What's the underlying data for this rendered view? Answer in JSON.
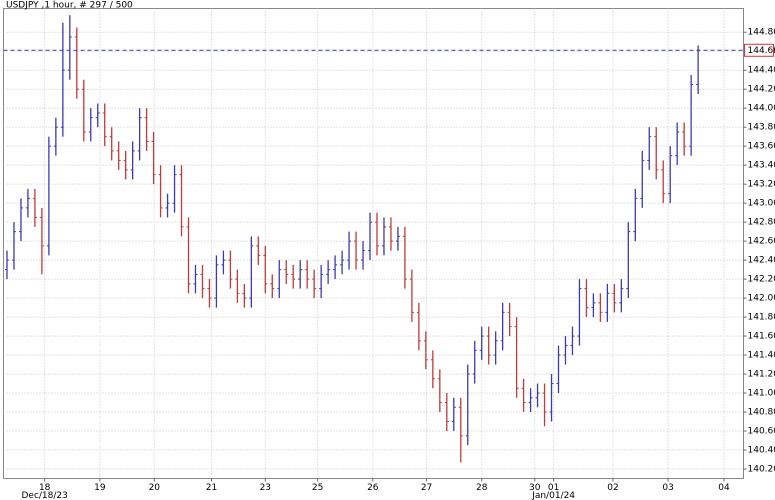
{
  "chart_data": {
    "type": "ohlc",
    "title": "USDJPY ,1 hour, # 297 / 500",
    "up_color": "#3a3ab8",
    "down_color": "#c23a3a",
    "last_price": 144.61,
    "last_price_color": "#3a3a9c",
    "last_price_box_color": "#e03030",
    "grid": true,
    "xlim": [
      -0.5,
      105.5
    ],
    "xticks": [
      {
        "value": 5.4,
        "label": "18"
      },
      {
        "value": 13.3,
        "label": "19"
      },
      {
        "value": 21.1,
        "label": "20"
      },
      {
        "value": 29.3,
        "label": "21"
      },
      {
        "value": 37.0,
        "label": "23"
      },
      {
        "value": 44.5,
        "label": "25"
      },
      {
        "value": 52.4,
        "label": "26"
      },
      {
        "value": 60.1,
        "label": "27"
      },
      {
        "value": 68.0,
        "label": "28"
      },
      {
        "value": 75.6,
        "label": "30"
      },
      {
        "value": 78.3,
        "label": "01"
      },
      {
        "value": 86.8,
        "label": "02"
      },
      {
        "value": 94.7,
        "label": "03"
      },
      {
        "value": 102.7,
        "label": "04"
      }
    ],
    "date_labels": [
      {
        "value": 5.4,
        "label": "Dec/18/23"
      },
      {
        "value": 78.3,
        "label": "Jan/01/24"
      }
    ],
    "ylim": [
      140.1,
      145.05
    ],
    "yticks": [
      {
        "value": 140.2,
        "label": "140.20"
      },
      {
        "value": 140.4,
        "label": "140.40"
      },
      {
        "value": 140.6,
        "label": "140.60"
      },
      {
        "value": 140.8,
        "label": "140.80"
      },
      {
        "value": 141.0,
        "label": "141.00"
      },
      {
        "value": 141.2,
        "label": "141.20"
      },
      {
        "value": 141.4,
        "label": "141.40"
      },
      {
        "value": 141.6,
        "label": "141.60"
      },
      {
        "value": 141.8,
        "label": "141.80"
      },
      {
        "value": 142.0,
        "label": "142.00"
      },
      {
        "value": 142.2,
        "label": "142.20"
      },
      {
        "value": 142.4,
        "label": "142.40"
      },
      {
        "value": 142.6,
        "label": "142.60"
      },
      {
        "value": 142.8,
        "label": "142.80"
      },
      {
        "value": 143.0,
        "label": "143.00"
      },
      {
        "value": 143.2,
        "label": "143.20"
      },
      {
        "value": 143.4,
        "label": "143.40"
      },
      {
        "value": 143.6,
        "label": "143.60"
      },
      {
        "value": 143.8,
        "label": "143.80"
      },
      {
        "value": 144.0,
        "label": "144.00"
      },
      {
        "value": 144.2,
        "label": "144.20"
      },
      {
        "value": 144.4,
        "label": "144.40"
      },
      {
        "value": 144.6,
        "label": "144.60"
      },
      {
        "value": 144.8,
        "label": "144.80"
      }
    ],
    "open": [
      142.3,
      142.4,
      142.7,
      142.95,
      143.05,
      142.85,
      142.55,
      143.6,
      143.8,
      144.4,
      144.75,
      144.2,
      143.75,
      143.9,
      143.95,
      143.7,
      143.55,
      143.45,
      143.35,
      143.55,
      143.9,
      143.65,
      143.3,
      142.95,
      143.0,
      143.3,
      142.75,
      142.15,
      142.25,
      142.1,
      142.0,
      142.35,
      142.4,
      142.2,
      142.05,
      142.0,
      142.55,
      142.45,
      142.15,
      142.1,
      142.3,
      142.25,
      142.2,
      142.3,
      142.2,
      142.1,
      142.25,
      142.3,
      142.35,
      142.4,
      142.6,
      142.4,
      142.5,
      142.8,
      142.55,
      142.75,
      142.6,
      142.65,
      142.2,
      141.85,
      141.55,
      141.35,
      141.15,
      140.9,
      140.7,
      140.85,
      140.55,
      141.2,
      141.45,
      141.6,
      141.4,
      141.55,
      141.85,
      141.7,
      141.05,
      140.9,
      140.95,
      141.0,
      140.8,
      141.1,
      141.4,
      141.5,
      141.6,
      142.1,
      141.9,
      141.95,
      141.85,
      142.05,
      141.95,
      142.1,
      142.7,
      143.05,
      143.45,
      143.7,
      143.35,
      143.1,
      143.5,
      143.75,
      143.6,
      144.25
    ],
    "high": [
      142.5,
      142.8,
      143.05,
      143.15,
      143.15,
      142.95,
      143.7,
      143.9,
      144.9,
      144.98,
      144.85,
      144.3,
      144.0,
      144.05,
      144.05,
      143.8,
      143.65,
      143.55,
      143.65,
      144.0,
      144.0,
      143.75,
      143.4,
      143.1,
      143.4,
      143.4,
      142.85,
      142.35,
      142.35,
      142.2,
      142.45,
      142.5,
      142.5,
      142.3,
      142.15,
      142.65,
      142.65,
      142.55,
      142.25,
      142.4,
      142.4,
      142.35,
      142.4,
      142.4,
      142.3,
      142.35,
      142.4,
      142.45,
      142.5,
      142.7,
      142.7,
      142.6,
      142.9,
      142.9,
      142.85,
      142.85,
      142.75,
      142.75,
      142.3,
      141.95,
      141.65,
      141.45,
      141.25,
      141.0,
      140.95,
      140.95,
      141.3,
      141.55,
      141.7,
      141.7,
      141.65,
      141.95,
      141.95,
      141.8,
      141.15,
      141.05,
      141.1,
      141.1,
      141.2,
      141.5,
      141.6,
      141.7,
      142.2,
      142.2,
      142.05,
      142.05,
      142.15,
      142.15,
      142.2,
      142.8,
      143.15,
      143.55,
      143.8,
      143.8,
      143.45,
      143.6,
      143.85,
      143.85,
      144.35,
      144.66
    ],
    "low": [
      142.2,
      142.3,
      142.6,
      142.85,
      142.75,
      142.25,
      142.45,
      143.5,
      143.7,
      144.3,
      144.1,
      143.65,
      143.65,
      143.8,
      143.6,
      143.45,
      143.35,
      143.25,
      143.25,
      143.45,
      143.55,
      143.2,
      142.85,
      142.85,
      142.9,
      142.65,
      142.05,
      142.05,
      142.0,
      141.9,
      141.9,
      142.25,
      142.1,
      141.95,
      141.9,
      141.9,
      142.35,
      142.05,
      142.0,
      142.0,
      142.15,
      142.1,
      142.1,
      142.1,
      142.0,
      142.0,
      142.15,
      142.2,
      142.25,
      142.3,
      142.3,
      142.3,
      142.4,
      142.45,
      142.45,
      142.5,
      142.5,
      142.1,
      141.75,
      141.45,
      141.25,
      141.05,
      140.8,
      140.6,
      140.6,
      140.27,
      140.45,
      141.1,
      141.35,
      141.3,
      141.3,
      141.45,
      141.6,
      140.95,
      140.8,
      140.8,
      140.85,
      140.65,
      140.7,
      141.0,
      141.3,
      141.4,
      141.5,
      141.8,
      141.8,
      141.75,
      141.75,
      141.85,
      141.85,
      142.0,
      142.6,
      142.95,
      143.35,
      143.25,
      143.0,
      143.0,
      143.4,
      143.5,
      143.5,
      144.15
    ],
    "close": [
      142.4,
      142.7,
      142.95,
      143.05,
      142.85,
      142.55,
      143.6,
      143.8,
      144.4,
      144.75,
      144.2,
      143.75,
      143.9,
      143.95,
      143.7,
      143.55,
      143.45,
      143.35,
      143.55,
      143.9,
      143.65,
      143.3,
      142.95,
      143.0,
      143.3,
      142.75,
      142.15,
      142.25,
      142.1,
      142.0,
      142.35,
      142.4,
      142.2,
      142.05,
      142.0,
      142.55,
      142.45,
      142.15,
      142.1,
      142.3,
      142.25,
      142.2,
      142.3,
      142.2,
      142.1,
      142.25,
      142.3,
      142.35,
      142.4,
      142.6,
      142.4,
      142.5,
      142.8,
      142.55,
      142.75,
      142.6,
      142.65,
      142.2,
      141.85,
      141.55,
      141.35,
      141.15,
      140.9,
      140.7,
      140.85,
      140.55,
      141.2,
      141.45,
      141.6,
      141.4,
      141.55,
      141.85,
      141.7,
      141.05,
      140.9,
      140.95,
      141.0,
      140.8,
      141.1,
      141.4,
      141.5,
      141.6,
      142.1,
      141.9,
      141.95,
      141.85,
      142.05,
      141.95,
      142.1,
      142.7,
      143.05,
      143.45,
      143.7,
      143.35,
      143.1,
      143.5,
      143.75,
      143.6,
      144.25,
      144.61
    ]
  }
}
